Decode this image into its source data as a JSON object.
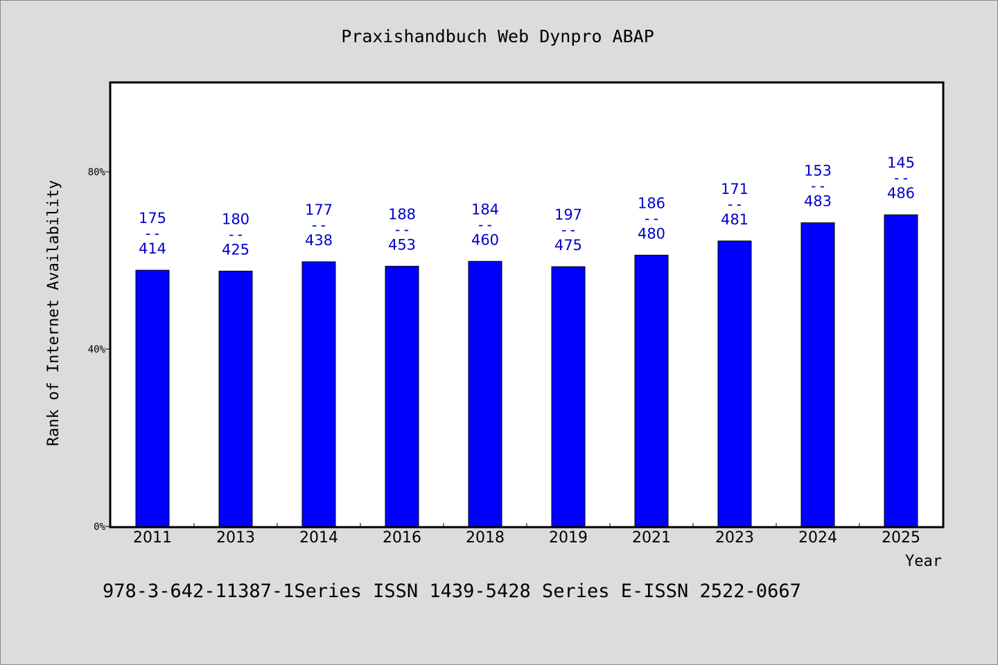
{
  "chart_data": {
    "type": "bar",
    "title": "Praxishandbuch Web Dynpro ABAP",
    "xlabel": "Year",
    "ylabel": "Rank of Internet Availability",
    "categories": [
      "2011",
      "2013",
      "2014",
      "2016",
      "2018",
      "2019",
      "2021",
      "2023",
      "2024",
      "2025"
    ],
    "values": [
      57.8,
      57.6,
      59.7,
      58.7,
      59.8,
      58.6,
      61.2,
      64.4,
      68.5,
      70.3
    ],
    "labels_top": [
      "175",
      "180",
      "177",
      "188",
      "184",
      "197",
      "186",
      "171",
      "153",
      "145"
    ],
    "labels_sep": "--",
    "labels_bottom": [
      "414",
      "425",
      "438",
      "453",
      "460",
      "475",
      "480",
      "481",
      "483",
      "486"
    ],
    "ylim": [
      0,
      100
    ],
    "yticks": [
      0,
      40,
      80
    ],
    "ytick_labels": [
      "0%",
      "40%",
      "80%"
    ],
    "grid": false,
    "bar_color": "#0000ff",
    "label_color": "#0000cc"
  },
  "footer": {
    "text": "978-3-642-11387-1Series ISSN 1439-5428 Series E-ISSN 2522-0667"
  }
}
